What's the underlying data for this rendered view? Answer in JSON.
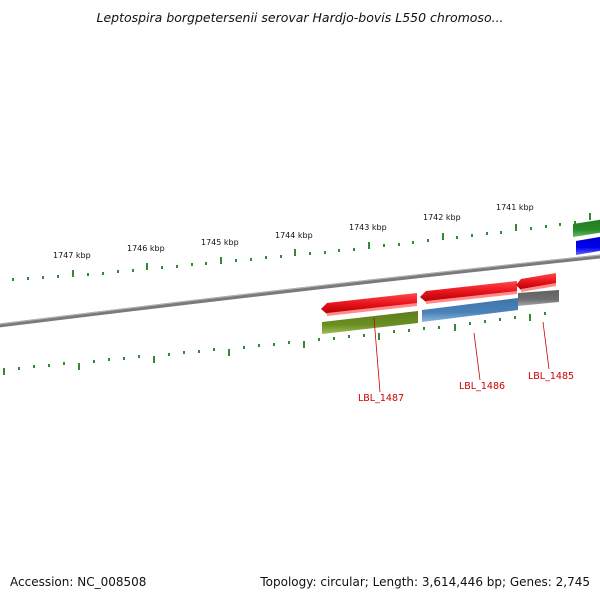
{
  "title": "Leptospira borgpetersenii serovar Hardjo-bovis L550 chromoso...",
  "footer": {
    "accession": "Accession: NC_008508",
    "summary": "Topology: circular; Length: 3,614,446 bp; Genes: 2,745"
  },
  "colors": {
    "backbone": "#808080",
    "tick": "#2e8b2e",
    "gene_red": "#e8141e",
    "gene_olive": "#6b8e23",
    "gene_steel": "#4a82b8",
    "gene_grey": "#6e6e6e",
    "gene_green": "#2a8a2a",
    "gene_blue": "#0000ee",
    "label_red": "#cc0000"
  },
  "scale_labels": [
    "1747 kbp",
    "1746 kbp",
    "1745 kbp",
    "1744 kbp",
    "1743 kbp",
    "1742 kbp",
    "1741 kbp"
  ],
  "gene_labels": [
    "LBL_1487",
    "LBL_1486",
    "LBL_1485"
  ]
}
